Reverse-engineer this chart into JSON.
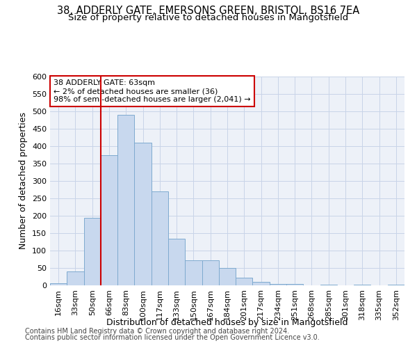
{
  "title_line1": "38, ADDERLY GATE, EMERSONS GREEN, BRISTOL, BS16 7EA",
  "title_line2": "Size of property relative to detached houses in Mangotsfield",
  "xlabel": "Distribution of detached houses by size in Mangotsfield",
  "ylabel": "Number of detached properties",
  "categories": [
    "16sqm",
    "33sqm",
    "50sqm",
    "66sqm",
    "83sqm",
    "100sqm",
    "117sqm",
    "133sqm",
    "150sqm",
    "167sqm",
    "184sqm",
    "201sqm",
    "217sqm",
    "234sqm",
    "251sqm",
    "268sqm",
    "285sqm",
    "301sqm",
    "318sqm",
    "335sqm",
    "352sqm"
  ],
  "values": [
    7,
    40,
    195,
    375,
    490,
    410,
    270,
    135,
    73,
    73,
    50,
    22,
    10,
    5,
    5,
    0,
    3,
    0,
    2,
    0,
    2
  ],
  "bar_color": "#c8d8ee",
  "bar_edge_color": "#7eaacf",
  "vline_position": 3,
  "vline_color": "#cc0000",
  "annotation_text": "38 ADDERLY GATE: 63sqm\n← 2% of detached houses are smaller (36)\n98% of semi-detached houses are larger (2,041) →",
  "annotation_box_color": "#ffffff",
  "annotation_box_edge": "#cc0000",
  "ylim": [
    0,
    600
  ],
  "yticks": [
    0,
    50,
    100,
    150,
    200,
    250,
    300,
    350,
    400,
    450,
    500,
    550,
    600
  ],
  "grid_color": "#c8d4e8",
  "bg_color": "#edf1f8",
  "footer_line1": "Contains HM Land Registry data © Crown copyright and database right 2024.",
  "footer_line2": "Contains public sector information licensed under the Open Government Licence v3.0.",
  "title_fontsize": 10.5,
  "subtitle_fontsize": 9.5,
  "axis_label_fontsize": 9,
  "tick_fontsize": 8,
  "annotation_fontsize": 8,
  "footer_fontsize": 7
}
